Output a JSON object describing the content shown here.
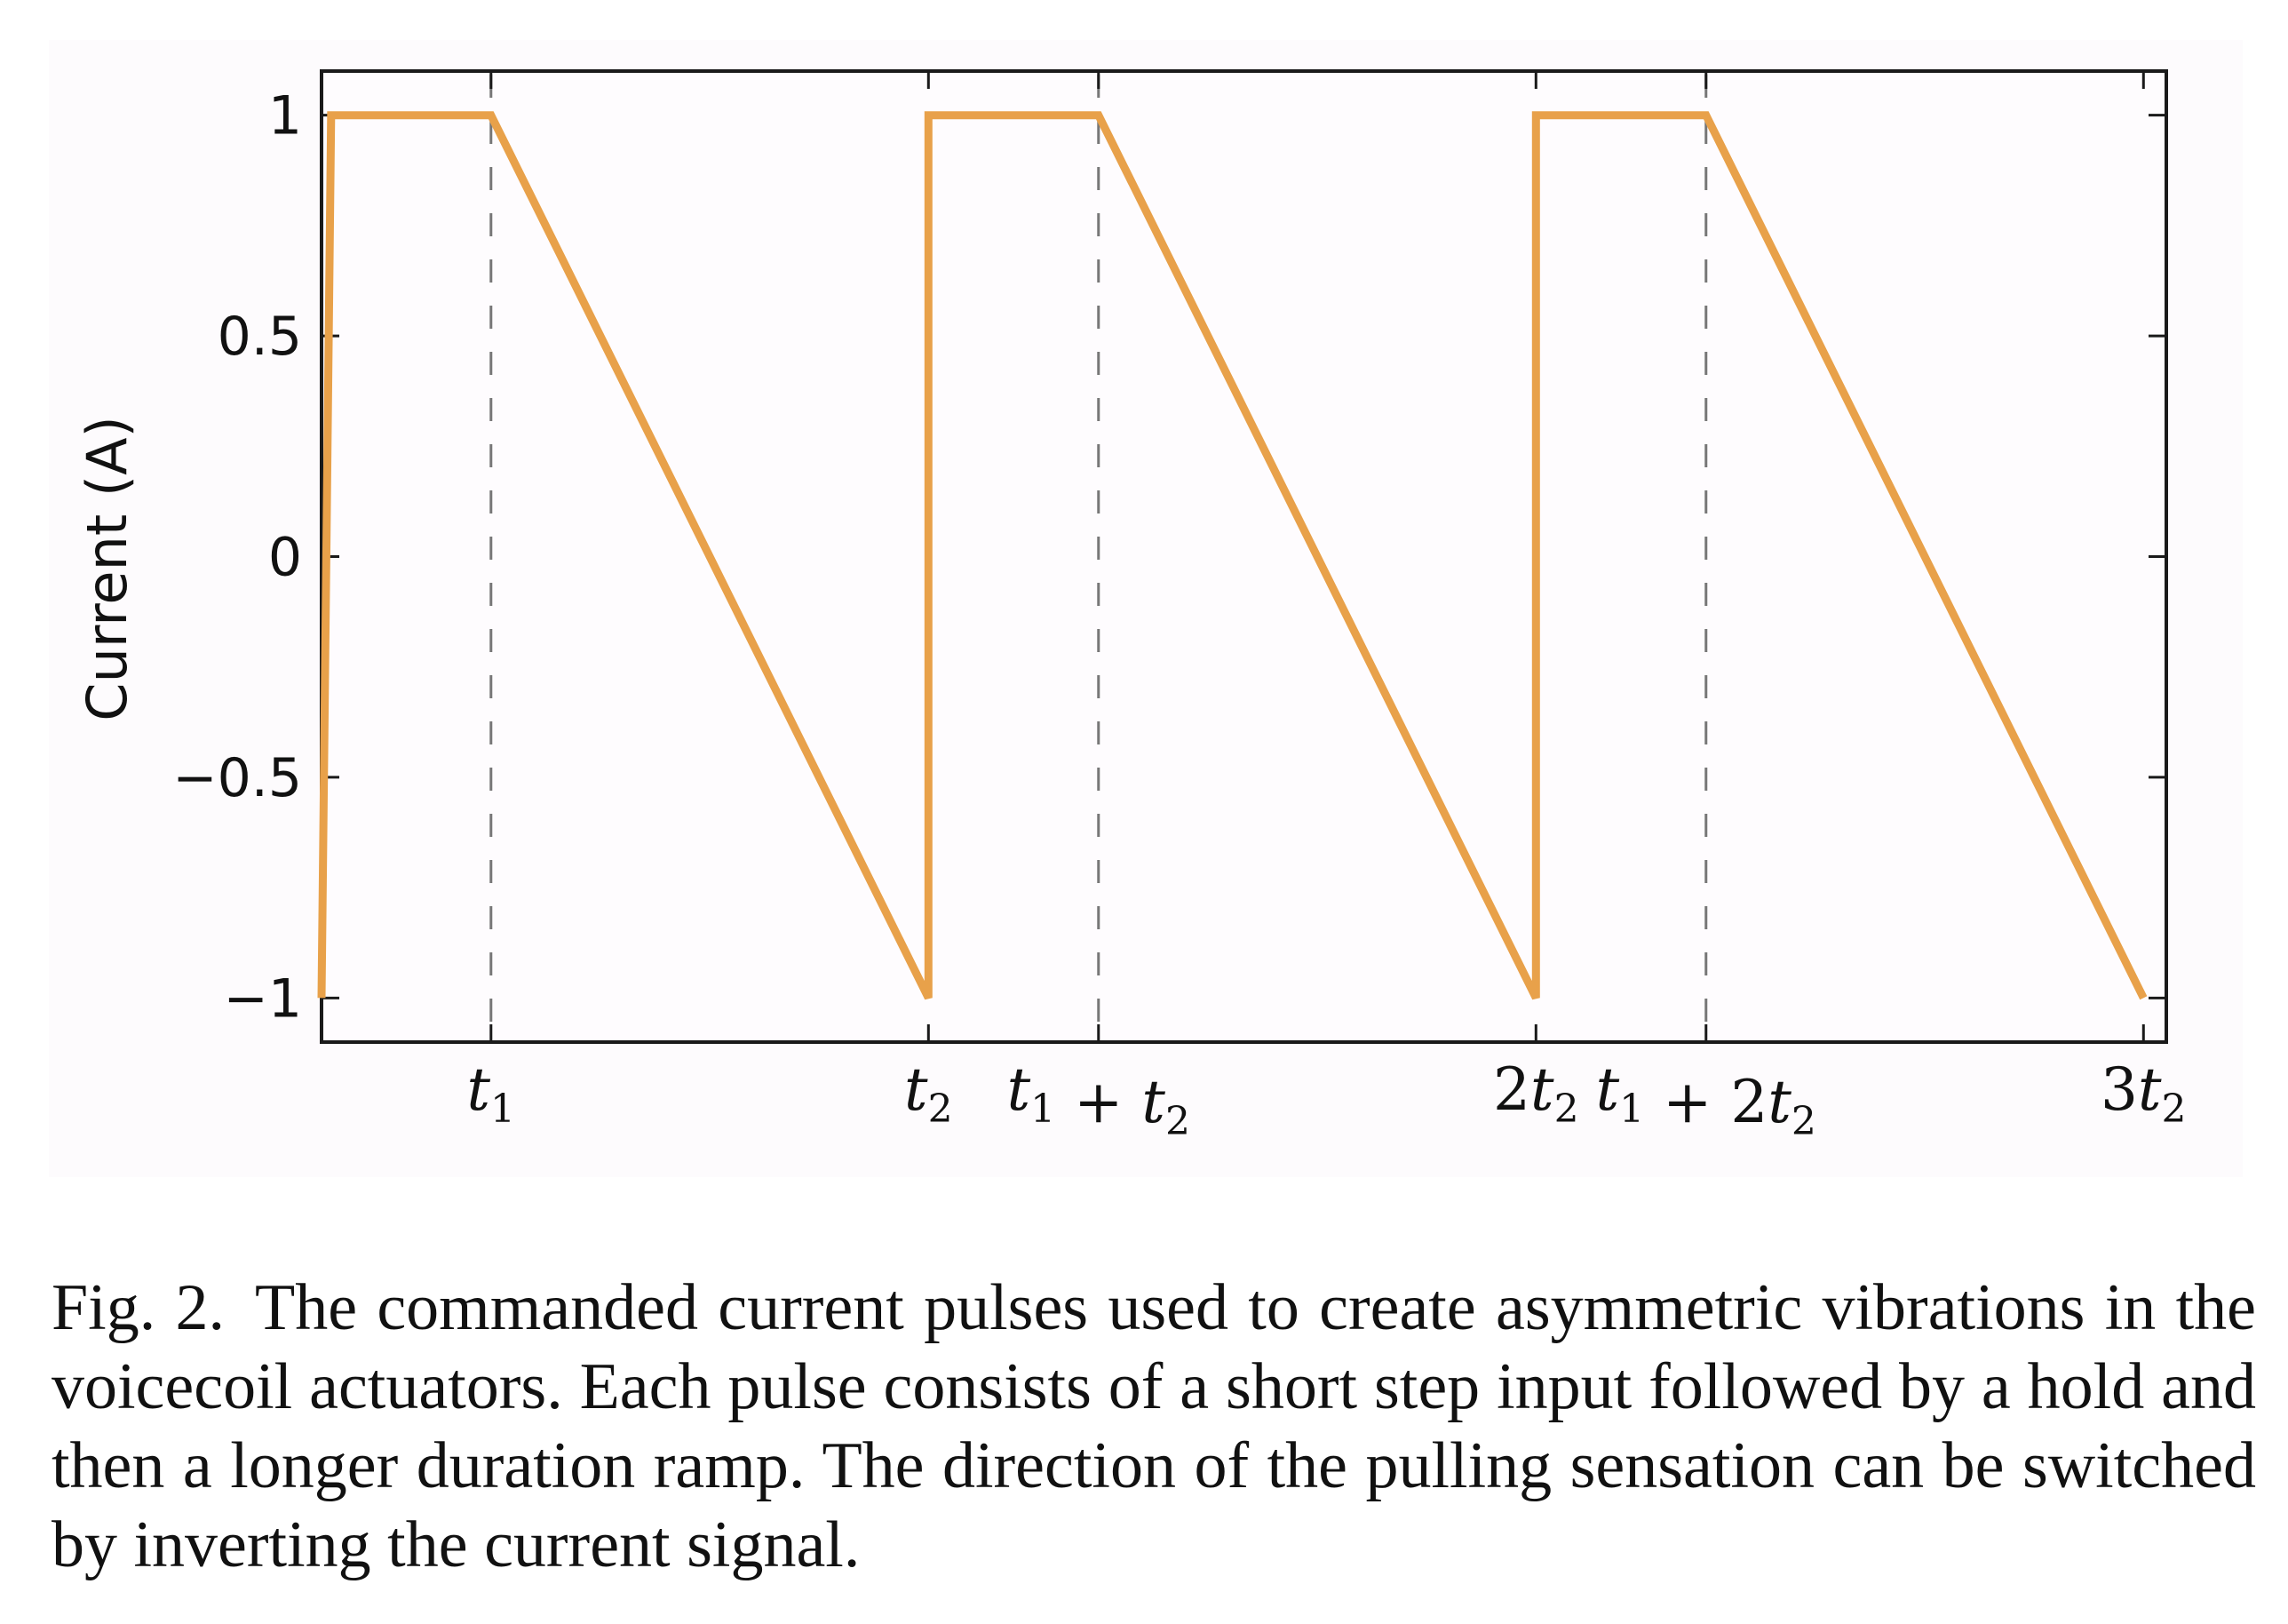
{
  "chart_data": {
    "type": "line",
    "title": "",
    "xlabel": "",
    "ylabel": "Current (A)",
    "ylim": [
      -1.1,
      1.1
    ],
    "xlim": [
      -0.282,
      2.788
    ],
    "yticks": [
      {
        "value": -1,
        "label": "−1"
      },
      {
        "value": -0.5,
        "label": "−0.5"
      },
      {
        "value": 0,
        "label": "0"
      },
      {
        "value": 0.5,
        "label": "0.5"
      },
      {
        "value": 1,
        "label": "1"
      }
    ],
    "xticks": [
      {
        "value": 0,
        "parts": [
          [
            "i",
            "t"
          ],
          [
            "s",
            "1"
          ]
        ]
      },
      {
        "value": 0.728,
        "parts": [
          [
            "i",
            "t"
          ],
          [
            "s",
            "2"
          ]
        ]
      },
      {
        "value": 1.011,
        "parts": [
          [
            "i",
            "t"
          ],
          [
            "s",
            "1"
          ],
          [
            "r",
            " + "
          ],
          [
            "i",
            "t"
          ],
          [
            "s",
            "2"
          ]
        ]
      },
      {
        "value": 1.739,
        "parts": [
          [
            "r",
            "2"
          ],
          [
            "i",
            "t"
          ],
          [
            "s",
            "2"
          ]
        ]
      },
      {
        "value": 2.022,
        "parts": [
          [
            "i",
            "t"
          ],
          [
            "s",
            "1"
          ],
          [
            "r",
            " + 2"
          ],
          [
            "i",
            "t"
          ],
          [
            "s",
            "2"
          ]
        ]
      },
      {
        "value": 2.75,
        "parts": [
          [
            "r",
            "3"
          ],
          [
            "i",
            "t"
          ],
          [
            "s",
            "2"
          ]
        ]
      }
    ],
    "guides": [
      0,
      1.011,
      2.022
    ],
    "grid": false,
    "series": [
      {
        "color": "#e8a14a",
        "x": [
          -0.282,
          -0.266,
          0.0,
          0.728,
          0.728,
          1.011,
          1.739,
          1.739,
          2.022,
          2.75
        ],
        "y": [
          -1,
          1,
          1,
          -1,
          1,
          1,
          -1,
          1,
          1,
          -1
        ]
      }
    ]
  },
  "caption": {
    "figure_number": "Fig. 2.",
    "text": "The commanded current pulses used to create asymmetric vibrations in the voicecoil actuators. Each pulse consists of a short step input followed by a hold and then a longer duration ramp. The direction of the pulling sensation can be switched by inverting the current signal."
  }
}
